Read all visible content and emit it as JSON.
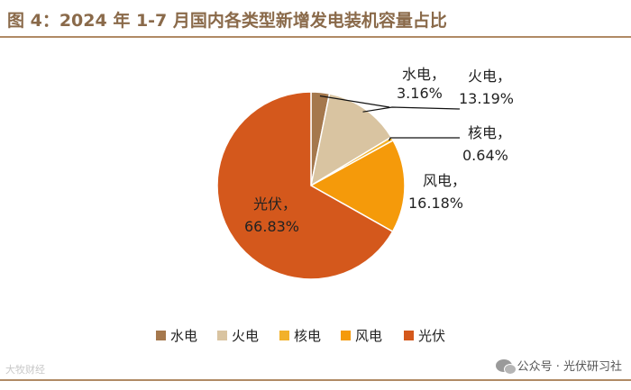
{
  "title": "图 4：2024 年 1-7 月国内各类型新增发电装机容量占比",
  "chart_data": {
    "type": "pie",
    "title": "图 4：2024 年 1-7 月国内各类型新增发电装机容量占比",
    "slices": [
      {
        "name": "水电",
        "value": 3.16,
        "label": "3.16%",
        "color": "#a5784d"
      },
      {
        "name": "火电",
        "value": 13.19,
        "label": "13.19%",
        "color": "#d9c4a1"
      },
      {
        "name": "核电",
        "value": 0.64,
        "label": "0.64%",
        "color": "#f2b12a"
      },
      {
        "name": "风电",
        "value": 16.18,
        "label": "16.18%",
        "color": "#f59a0a"
      },
      {
        "name": "光伏",
        "value": 66.83,
        "label": "66.83%",
        "color": "#d4581c"
      }
    ],
    "legend_placement": "bottom"
  },
  "watermark_left": "大牧财经",
  "watermark_right": "公众号 · 光伏研习社"
}
